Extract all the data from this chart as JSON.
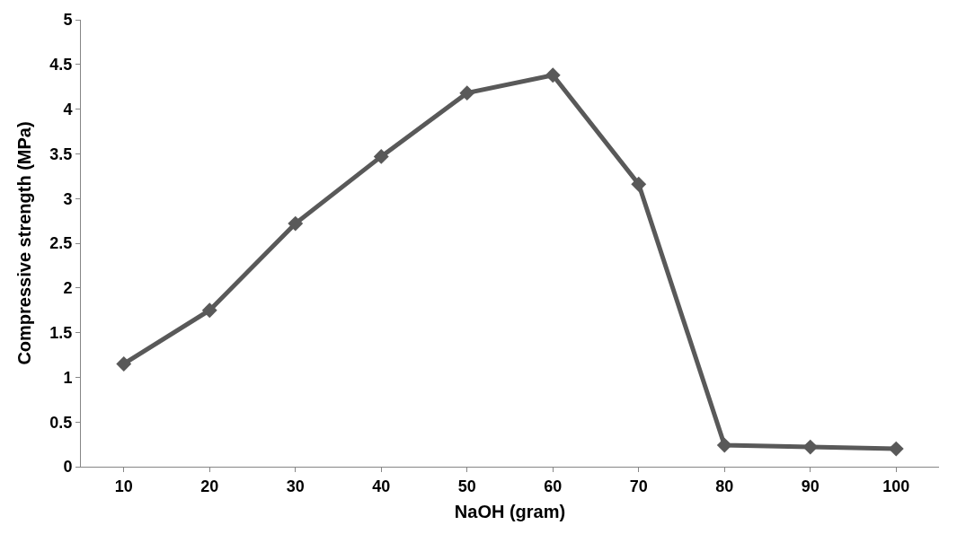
{
  "chart_data": {
    "type": "line",
    "xlabel": "NaOH (gram)",
    "ylabel": "Compressive strength (MPa)",
    "categories": [
      "10",
      "20",
      "30",
      "40",
      "50",
      "60",
      "70",
      "80",
      "90",
      "100"
    ],
    "series": [
      {
        "color": "#595959",
        "values": [
          1.15,
          1.75,
          2.72,
          3.47,
          4.18,
          4.38,
          3.16,
          0.24,
          0.22,
          0.2
        ]
      }
    ],
    "ylim": [
      0,
      5
    ],
    "yticks": [
      0,
      0.5,
      1,
      1.5,
      2,
      2.5,
      3,
      3.5,
      4,
      4.5,
      5
    ],
    "legend": false,
    "marker": "diamond",
    "line_style": "solid"
  }
}
